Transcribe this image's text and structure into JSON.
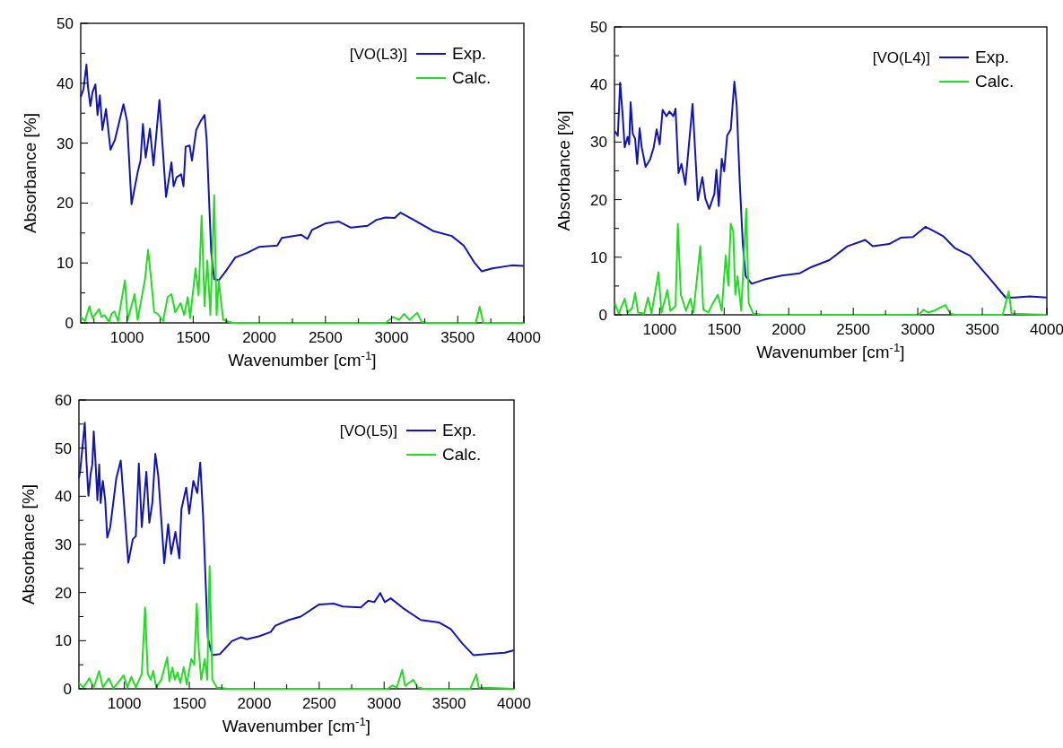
{
  "chart_data": [
    {
      "type": "line",
      "legend_title": "[VO(L3)]",
      "xlabel": "Wavenumber [cm$^{-1}$]",
      "ylabel": "Absorbance [%]",
      "legend": "top right",
      "xlim": [
        650,
        4000
      ],
      "ylim": [
        0,
        50
      ],
      "xticks": [
        {
          "value": 750,
          "label": null
        },
        1000,
        {
          "value": 1250,
          "label": null
        },
        1500,
        {
          "value": 1750,
          "label": null
        },
        2000,
        {
          "value": 2250,
          "label": null
        },
        2500,
        {
          "value": 2750,
          "label": null
        },
        3000,
        {
          "value": 3250,
          "label": null
        },
        3500,
        {
          "value": 3750,
          "label": null
        },
        4000
      ],
      "yticks": [
        0,
        {
          "value": 5,
          "label": null
        },
        10,
        {
          "value": 15,
          "label": null
        },
        20,
        {
          "value": 25,
          "label": null
        },
        30,
        {
          "value": 35,
          "label": null
        },
        40,
        {
          "value": 45,
          "label": null
        },
        50
      ],
      "series": [
        {
          "name": "Exp.",
          "color": "#1414b4",
          "x": [
            650,
            671,
            693,
            705,
            723,
            739,
            761,
            777,
            795,
            814,
            841,
            875,
            909,
            973,
            1000,
            1034,
            1080,
            1102,
            1120,
            1141,
            1173,
            1200,
            1245,
            1295,
            1336,
            1352,
            1375,
            1409,
            1427,
            1443,
            1473,
            1491,
            1523,
            1557,
            1586,
            1602,
            1636,
            1659,
            1693,
            1739,
            1818,
            1909,
            2000,
            2136,
            2170,
            2318,
            2364,
            2398,
            2500,
            2602,
            2693,
            2818,
            2886,
            2955,
            3023,
            3068,
            3182,
            3318,
            3455,
            3545,
            3625,
            3682,
            3761,
            3909,
            4000
          ],
          "values": [
            37.7,
            39.0,
            43.1,
            39.3,
            36.2,
            38.5,
            39.8,
            34.7,
            38.0,
            32.2,
            35.7,
            28.9,
            30.6,
            36.5,
            33.7,
            19.8,
            25.1,
            27.1,
            33.2,
            27.6,
            32.4,
            26.3,
            37.2,
            21.0,
            26.8,
            22.8,
            24.3,
            24.8,
            22.8,
            29.4,
            29.6,
            27.1,
            32.2,
            33.7,
            34.7,
            30.6,
            11.9,
            7.3,
            7.1,
            8.4,
            10.9,
            11.7,
            12.7,
            12.9,
            14.2,
            14.7,
            14.0,
            15.5,
            16.6,
            16.9,
            15.9,
            16.2,
            17.2,
            17.6,
            17.5,
            18.4,
            17.0,
            15.3,
            14.5,
            12.9,
            10.1,
            8.6,
            9.1,
            9.6,
            9.5
          ]
        },
        {
          "name": "Calc.",
          "color": "#22dd22",
          "x": [
            650,
            682,
            716,
            739,
            789,
            807,
            830,
            864,
            882,
            905,
            932,
            984,
            1005,
            1057,
            1080,
            1136,
            1159,
            1182,
            1205,
            1232,
            1273,
            1307,
            1336,
            1364,
            1405,
            1432,
            1459,
            1477,
            1518,
            1541,
            1564,
            1586,
            1607,
            1630,
            1659,
            1677,
            1693,
            1727,
            1795,
            2955,
            3011,
            3057,
            3095,
            3136,
            3193,
            3227,
            3273,
            3636,
            3666,
            3693,
            4000
          ],
          "values": [
            1.0,
            0.3,
            2.8,
            0.8,
            2.3,
            1.0,
            1.3,
            0.2,
            1.5,
            1.9,
            0.3,
            7.1,
            0.5,
            4.8,
            0.5,
            7.3,
            12.2,
            7.3,
            1.8,
            1.5,
            0.3,
            4.3,
            4.8,
            1.8,
            3.3,
            1.3,
            4.3,
            0.8,
            9.1,
            4.6,
            17.9,
            2.8,
            10.4,
            1.3,
            21.3,
            1.3,
            7.1,
            0.5,
            0,
            0,
            1.0,
            0.5,
            1.5,
            0.5,
            1.7,
            0.2,
            0,
            0,
            2.7,
            0,
            0
          ]
        }
      ]
    },
    {
      "type": "line",
      "legend_title": "[VO(L4)]",
      "xlabel": "Wavenumber [cm$^{-1}$]",
      "ylabel": "Absorbance [%]",
      "legend": "top right",
      "xlim": [
        650,
        4000
      ],
      "ylim": [
        0,
        50
      ],
      "xticks": [
        {
          "value": 750,
          "label": null
        },
        1000,
        {
          "value": 1250,
          "label": null
        },
        1500,
        {
          "value": 1750,
          "label": null
        },
        2000,
        {
          "value": 2250,
          "label": null
        },
        2500,
        {
          "value": 2750,
          "label": null
        },
        3000,
        {
          "value": 3250,
          "label": null
        },
        3500,
        {
          "value": 3750,
          "label": null
        },
        4000
      ],
      "yticks": [
        0,
        {
          "value": 5,
          "label": null
        },
        10,
        {
          "value": 15,
          "label": null
        },
        20,
        {
          "value": 25,
          "label": null
        },
        30,
        {
          "value": 35,
          "label": null
        },
        40,
        {
          "value": 45,
          "label": null
        },
        50
      ],
      "series": [
        {
          "name": "Exp.",
          "color": "#1414b4",
          "x": [
            653,
            676,
            694,
            713,
            729,
            752,
            764,
            775,
            792,
            810,
            826,
            845,
            861,
            891,
            926,
            954,
            977,
            1000,
            1023,
            1053,
            1076,
            1106,
            1123,
            1146,
            1169,
            1199,
            1255,
            1296,
            1331,
            1354,
            1384,
            1424,
            1440,
            1458,
            1481,
            1500,
            1523,
            1551,
            1579,
            1597,
            1620,
            1644,
            1667,
            1713,
            1806,
            1945,
            2083,
            2176,
            2315,
            2454,
            2593,
            2651,
            2778,
            2871,
            2963,
            3060,
            3195,
            3287,
            3403,
            3565,
            3681,
            3750,
            3866,
            4000
          ],
          "values": [
            31.9,
            31.1,
            40.3,
            34.8,
            29.1,
            30.9,
            29.6,
            36.9,
            31.4,
            30.6,
            26.2,
            32.4,
            29.1,
            25.7,
            27.0,
            29.1,
            32.2,
            29.6,
            35.6,
            34.5,
            35.3,
            34.5,
            35.8,
            24.6,
            26.2,
            22.6,
            36.6,
            19.9,
            23.9,
            20.2,
            18.4,
            21.0,
            25.2,
            18.9,
            27.1,
            24.9,
            31.1,
            32.2,
            40.5,
            36.4,
            23.3,
            12.4,
            6.7,
            5.4,
            6.1,
            6.8,
            7.2,
            8.3,
            9.5,
            11.9,
            13.0,
            11.9,
            12.3,
            13.4,
            13.5,
            15.3,
            13.7,
            11.6,
            10.3,
            6.1,
            3.0,
            3.0,
            3.2,
            3.0
          ]
        },
        {
          "name": "Calc.",
          "color": "#22dd22",
          "x": [
            653,
            683,
            729,
            752,
            787,
            810,
            833,
            880,
            910,
            937,
            991,
            1014,
            1060,
            1083,
            1123,
            1141,
            1164,
            1204,
            1238,
            1262,
            1315,
            1338,
            1377,
            1412,
            1451,
            1481,
            1512,
            1532,
            1551,
            1570,
            1586,
            1604,
            1632,
            1671,
            1690,
            1725,
            1806,
            3009,
            3044,
            3079,
            3125,
            3213,
            3253,
            3287,
            3658,
            3704,
            3727,
            4000
          ],
          "values": [
            2.0,
            0.2,
            2.8,
            0.4,
            1.2,
            3.8,
            0.4,
            0.2,
            3.0,
            0.2,
            7.4,
            0.4,
            4.3,
            0.7,
            1.5,
            15.8,
            3.5,
            0.7,
            2.8,
            0.4,
            11.9,
            0.9,
            0.4,
            2.0,
            3.5,
            0.7,
            10.3,
            5.1,
            15.8,
            14.5,
            3.5,
            6.7,
            0.7,
            18.4,
            2.0,
            0.2,
            0,
            0,
            0.9,
            0.4,
            0.7,
            1.7,
            0.2,
            0,
            0,
            4.1,
            0.2,
            0
          ]
        }
      ]
    },
    {
      "type": "line",
      "legend_title": "[VO(L5)]",
      "xlabel": "Wavenumber [cm$^{-1}$]",
      "ylabel": "Absorbance [%]",
      "legend": "top right",
      "xlim": [
        650,
        4000
      ],
      "ylim": [
        0,
        60
      ],
      "xticks": [
        {
          "value": 750,
          "label": null
        },
        1000,
        {
          "value": 1250,
          "label": null
        },
        1500,
        {
          "value": 1750,
          "label": null
        },
        2000,
        {
          "value": 2250,
          "label": null
        },
        2500,
        {
          "value": 2750,
          "label": null
        },
        3000,
        {
          "value": 3250,
          "label": null
        },
        3500,
        {
          "value": 3750,
          "label": null
        },
        4000
      ],
      "yticks": [
        0,
        {
          "value": 5,
          "label": null
        },
        10,
        {
          "value": 15,
          "label": null
        },
        20,
        {
          "value": 25,
          "label": null
        },
        30,
        {
          "value": 35,
          "label": null
        },
        40,
        {
          "value": 45,
          "label": null
        },
        50,
        {
          "value": 55,
          "label": null
        },
        60
      ],
      "series": [
        {
          "name": "Exp.",
          "color": "#1414b4",
          "x": [
            650,
            660,
            695,
            707,
            723,
            741,
            753,
            764,
            781,
            792,
            806,
            817,
            834,
            852,
            868,
            891,
            938,
            972,
            1000,
            1030,
            1065,
            1088,
            1111,
            1134,
            1169,
            1192,
            1215,
            1238,
            1261,
            1307,
            1337,
            1360,
            1393,
            1423,
            1439,
            1476,
            1499,
            1531,
            1561,
            1584,
            1607,
            1642,
            1677,
            1735,
            1827,
            1896,
            1943,
            2035,
            2127,
            2162,
            2266,
            2358,
            2497,
            2612,
            2682,
            2820,
            2878,
            2924,
            2970,
            3005,
            3051,
            3144,
            3282,
            3421,
            3513,
            3606,
            3687,
            3790,
            3929,
            4000
          ],
          "values": [
            43.8,
            45.4,
            55.3,
            47.6,
            40.1,
            44.8,
            46.6,
            53.5,
            45.4,
            39.2,
            46.6,
            38.6,
            43.2,
            39.2,
            31.4,
            33.6,
            43.8,
            47.4,
            37.3,
            26.2,
            31.1,
            31.7,
            46.8,
            33.6,
            45.1,
            34.5,
            38.6,
            48.8,
            44.2,
            26.1,
            34.2,
            28.0,
            32.6,
            27.1,
            37.3,
            41.8,
            36.4,
            43.2,
            40.7,
            47.0,
            35.4,
            10.6,
            7.0,
            7.2,
            9.9,
            10.7,
            10.3,
            10.9,
            11.8,
            13.1,
            14.3,
            15.0,
            17.5,
            17.7,
            17.1,
            16.9,
            18.3,
            18.0,
            19.9,
            18.0,
            18.8,
            16.8,
            14.3,
            13.8,
            12.4,
            9.3,
            7.0,
            7.2,
            7.5,
            8.0
          ]
        },
        {
          "name": "Calc.",
          "color": "#22dd22",
          "x": [
            650,
            684,
            730,
            764,
            806,
            834,
            880,
            915,
            995,
            1023,
            1053,
            1088,
            1134,
            1159,
            1180,
            1203,
            1222,
            1245,
            1284,
            1330,
            1346,
            1370,
            1388,
            1411,
            1430,
            1457,
            1480,
            1515,
            1538,
            1557,
            1573,
            1591,
            1619,
            1638,
            1656,
            1677,
            1711,
            1792,
            3028,
            3063,
            3097,
            3139,
            3162,
            3224,
            3259,
            3305,
            3663,
            3710,
            3728,
            4000
          ],
          "values": [
            1.2,
            0.3,
            2.2,
            0.3,
            3.7,
            0.3,
            2.2,
            0.1,
            2.8,
            0.3,
            2.5,
            0.3,
            3.1,
            16.9,
            3.1,
            1.9,
            3.7,
            0.3,
            1.9,
            6.5,
            1.6,
            4.4,
            1.9,
            3.4,
            1.2,
            4.5,
            0.9,
            6.2,
            5.0,
            17.7,
            8.1,
            1.9,
            6.2,
            1.9,
            25.5,
            1.9,
            0.3,
            0,
            0,
            0.7,
            0.3,
            3.9,
            0.6,
            1.9,
            0.3,
            0,
            0,
            3.0,
            0.3,
            0
          ]
        }
      ]
    }
  ]
}
